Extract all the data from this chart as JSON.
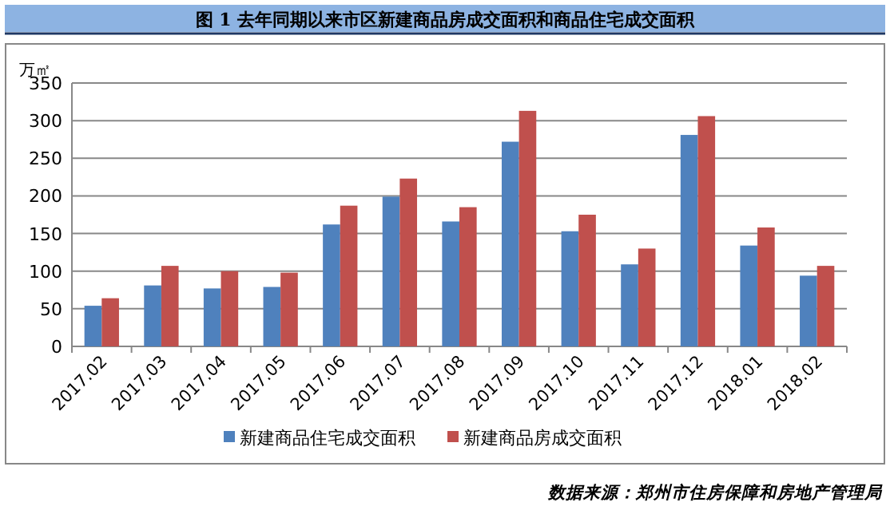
{
  "chart_data": {
    "type": "bar",
    "title": "图 1  去年同期以来市区新建商品房成交面积和商品住宅成交面积",
    "ylabel": "万㎡",
    "categories": [
      "2017.02",
      "2017.03",
      "2017.04",
      "2017.05",
      "2017.06",
      "2017.07",
      "2017.08",
      "2017.09",
      "2017.10",
      "2017.11",
      "2017.12",
      "2018.01",
      "2018.02"
    ],
    "series": [
      {
        "name": "新建商品住宅成交面积",
        "color": "#4f81bd",
        "values": [
          54,
          81,
          77,
          79,
          162,
          199,
          166,
          272,
          153,
          109,
          281,
          134,
          94
        ]
      },
      {
        "name": "新建商品房成交面积",
        "color": "#c0504d",
        "values": [
          64,
          107,
          100,
          98,
          187,
          223,
          185,
          313,
          175,
          130,
          306,
          158,
          107
        ]
      }
    ],
    "ylim": [
      0,
      350
    ],
    "yticks": [
      0,
      50,
      100,
      150,
      200,
      250,
      300,
      350
    ],
    "grid": "y",
    "legend": "bottom",
    "annotations": [
      "数据来源：郑州市住房保障和房地产管理局"
    ]
  }
}
